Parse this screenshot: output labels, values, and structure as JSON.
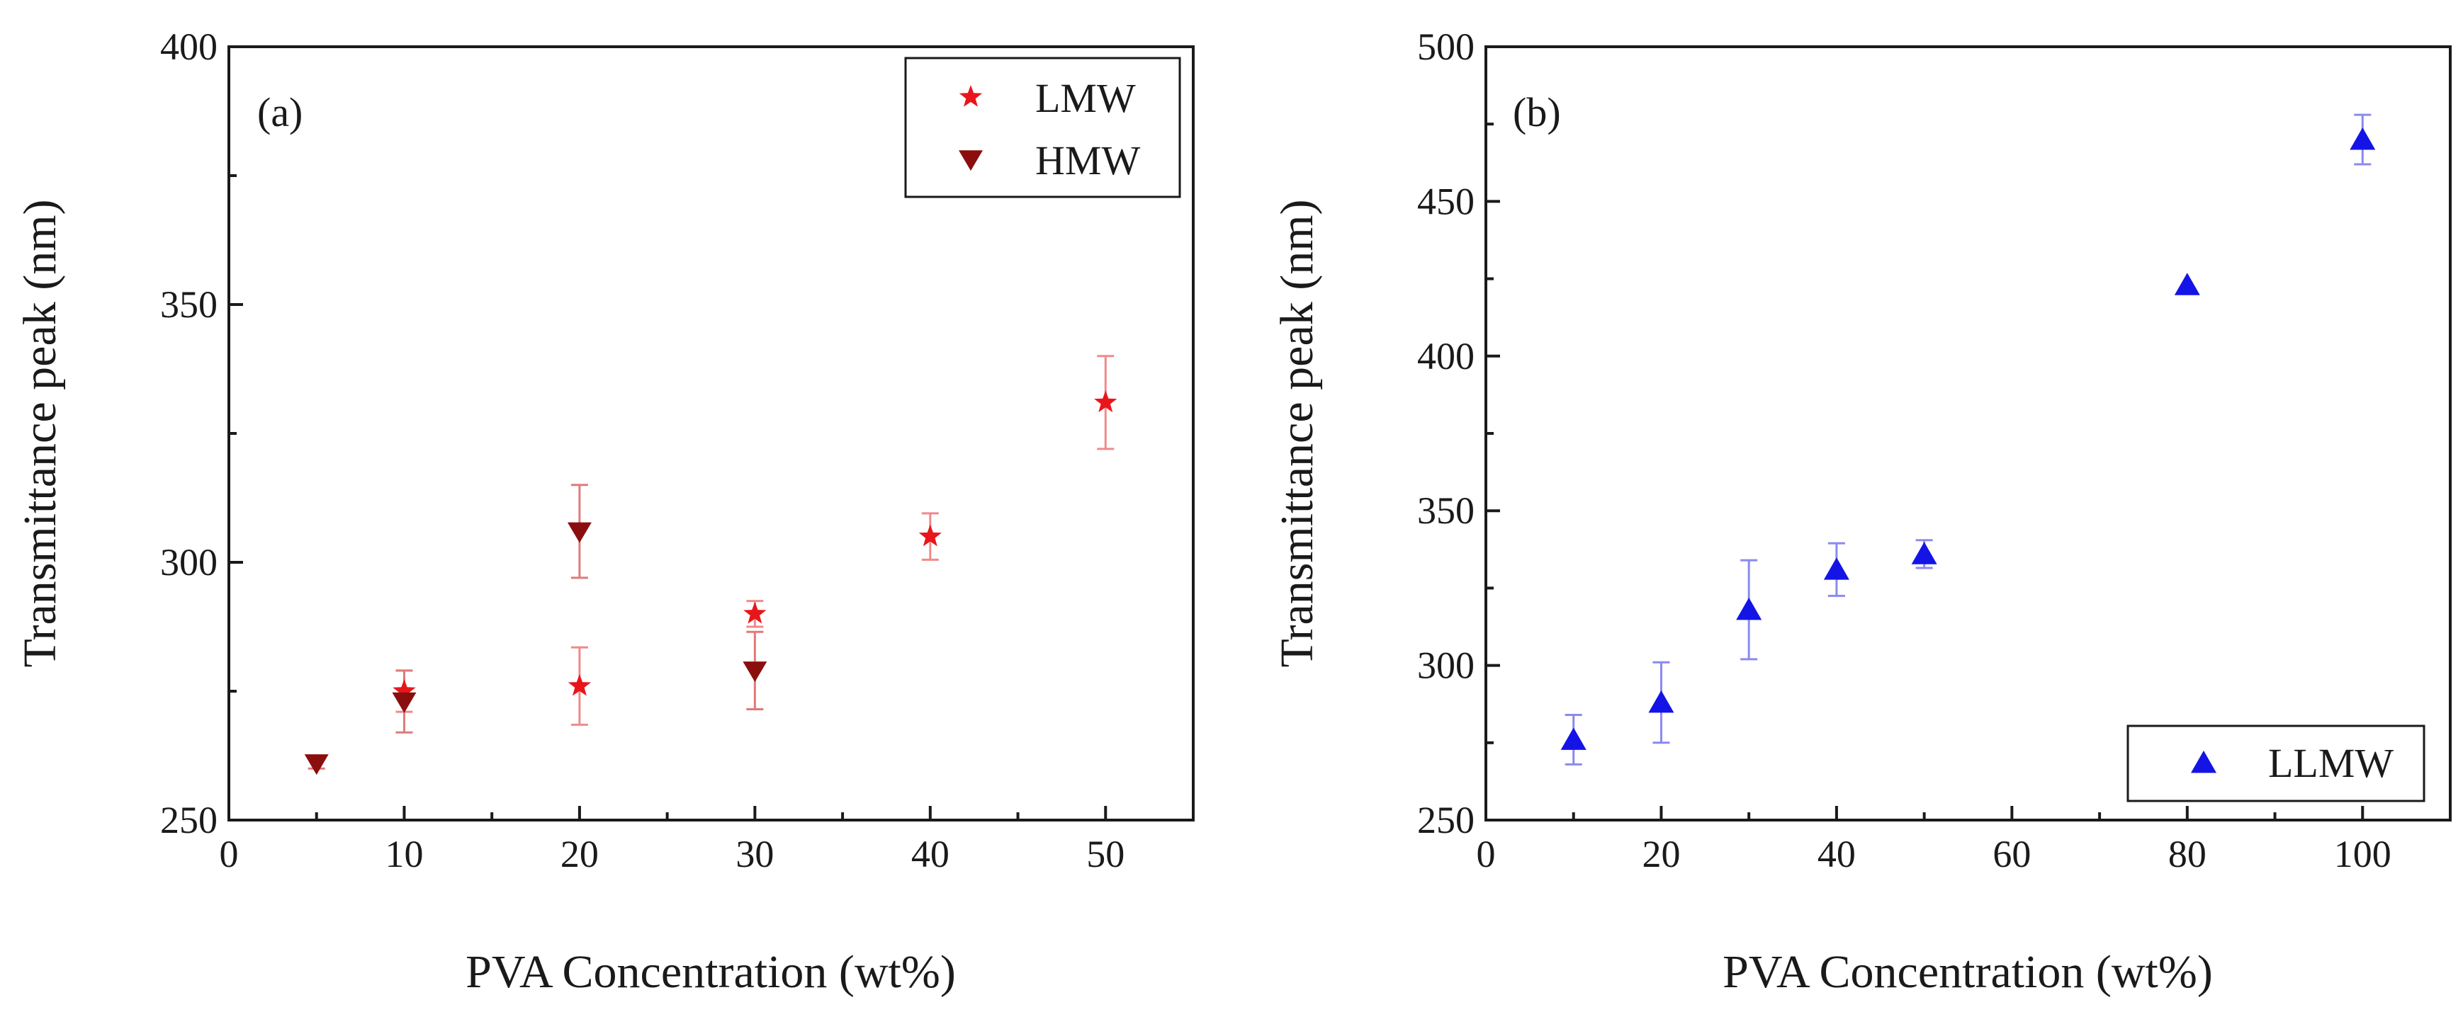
{
  "chart_data": [
    {
      "type": "scatter",
      "panel_label": "(a)",
      "title": "",
      "xlabel": "PVA Concentration (wt%)",
      "ylabel": "Transmittance peak (nm)",
      "xlim": [
        0,
        55
      ],
      "ylim": [
        250,
        400
      ],
      "xticks": [
        0,
        10,
        20,
        30,
        40,
        50
      ],
      "yticks": [
        250,
        300,
        350,
        400
      ],
      "legend_position": "top-right",
      "grid": false,
      "series": [
        {
          "name": "LMW",
          "marker": "star",
          "color": "#e8161b",
          "error_color": "#f08a8a",
          "x": [
            10,
            20,
            30,
            40,
            50
          ],
          "y": [
            275,
            276,
            290,
            305,
            331
          ],
          "yerr": [
            4,
            7.5,
            2.5,
            4.5,
            9
          ]
        },
        {
          "name": "HMW",
          "marker": "triangle-down",
          "color": "#8b0e0e",
          "error_color": "#e07a7a",
          "x": [
            5,
            10,
            20,
            30
          ],
          "y": [
            261,
            273,
            306,
            279
          ],
          "yerr": [
            1,
            6,
            9,
            7.5
          ]
        }
      ]
    },
    {
      "type": "scatter",
      "panel_label": "(b)",
      "title": "",
      "xlabel": "PVA Concentration (wt%)",
      "ylabel": "Transmittance peak (nm)",
      "xlim": [
        0,
        110
      ],
      "ylim": [
        250,
        500
      ],
      "xticks": [
        0,
        20,
        40,
        60,
        80,
        100
      ],
      "yticks": [
        250,
        300,
        350,
        400,
        450,
        500
      ],
      "legend_position": "bottom-right",
      "grid": false,
      "series": [
        {
          "name": "LLMW",
          "marker": "triangle-up",
          "color": "#1414e6",
          "error_color": "#8a8af0",
          "x": [
            10,
            20,
            30,
            40,
            50,
            80,
            100
          ],
          "y": [
            276,
            288,
            318,
            331,
            336,
            423,
            470
          ],
          "yerr": [
            8,
            13,
            16,
            8.5,
            4.5,
            0,
            8
          ]
        }
      ]
    }
  ]
}
